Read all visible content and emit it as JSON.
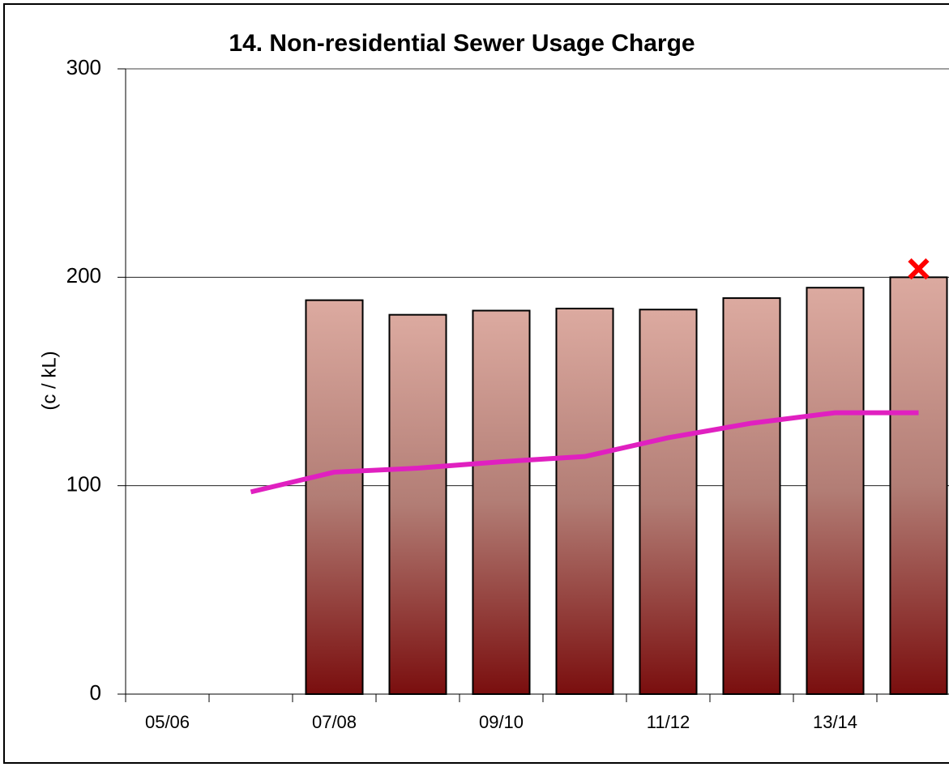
{
  "chart_data": {
    "type": "bar",
    "title": "14. Non-residential Sewer Usage Charge",
    "y_label": "(c / kL)",
    "categories": [
      "05/06",
      null,
      "07/08",
      null,
      "09/10",
      null,
      "11/12",
      null,
      "13/14",
      null
    ],
    "series": [
      {
        "type": "bar",
        "color": "#7a0e0e",
        "values": [
          null,
          null,
          189,
          182,
          184,
          185,
          184.5,
          190,
          195,
          200
        ]
      },
      {
        "type": "line",
        "color": "#e020c0",
        "values": [
          null,
          97,
          106.5,
          108.4,
          111.5,
          114,
          123,
          130,
          135,
          135
        ]
      },
      {
        "type": "marker",
        "color": "#ff0000",
        "values": [
          null,
          null,
          null,
          null,
          null,
          null,
          null,
          null,
          null,
          204
        ]
      }
    ],
    "ylim": [
      0,
      300
    ],
    "yticks": [
      0,
      100,
      200,
      300
    ],
    "grid": true
  }
}
